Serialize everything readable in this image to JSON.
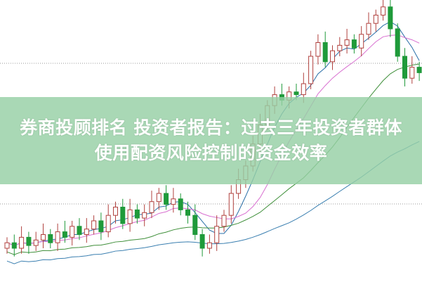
{
  "headline": {
    "line1": "券商投顾排名 投资者报告：过去三年投资者群体",
    "line2": "使用配资风险控制的资金效率"
  },
  "colors": {
    "up": "#b0413e",
    "down": "#1f9a3a",
    "banner": "#96d0a5",
    "ma5": "#2a6fa8",
    "ma10": "#d86fd0",
    "ma20": "#3f8f3a",
    "ma60": "#3a7fb0"
  },
  "candles_close": [
    12,
    10,
    14,
    11,
    13,
    15,
    12,
    16,
    14,
    18,
    15,
    17,
    20,
    16,
    22,
    25,
    19,
    24,
    21,
    23,
    27,
    30,
    26,
    28,
    24,
    22,
    15,
    10,
    12,
    18,
    22,
    30,
    35,
    40,
    48,
    55,
    62,
    66,
    64,
    67,
    66,
    70,
    80,
    85,
    78,
    82,
    84,
    86,
    83,
    88,
    92,
    95,
    98,
    90,
    80,
    72,
    76,
    74
  ]
}
